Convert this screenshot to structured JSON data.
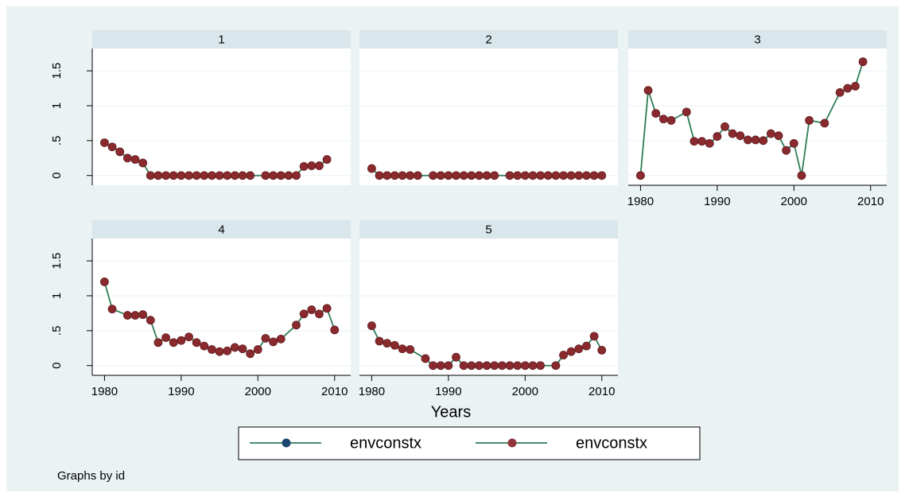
{
  "chart_data": [
    {
      "type": "line",
      "title": "1",
      "ylabels": true,
      "x": [
        1980,
        1981,
        1982,
        1983,
        1984,
        1985,
        1986,
        1987,
        1988,
        1989,
        1990,
        1991,
        1992,
        1993,
        1994,
        1995,
        1996,
        1997,
        1998,
        1999,
        2001,
        2002,
        2003,
        2004,
        2005,
        2006,
        2007,
        2008,
        2009
      ],
      "series": [
        {
          "color": "#8b2a2e",
          "line_color": "#2e7d56",
          "values": [
            0.47,
            0.41,
            0.34,
            0.25,
            0.23,
            0.18,
            0,
            0,
            0,
            0,
            0,
            0,
            0,
            0,
            0,
            0,
            0,
            0,
            0,
            0,
            0,
            0,
            0,
            0,
            0,
            0.13,
            0.14,
            0.14,
            0.23
          ]
        }
      ],
      "xlim": [
        1978.4,
        2012.1
      ],
      "ylim": [
        -0.14,
        1.82
      ],
      "yticks": [
        0,
        {
          "value": 0.5,
          "label": ".5"
        },
        1,
        {
          "value": 1.5,
          "label": "1.5"
        }
      ]
    },
    {
      "type": "line",
      "title": "2",
      "ylabels": false,
      "x": [
        1980,
        1981,
        1982,
        1983,
        1984,
        1985,
        1986,
        1988,
        1989,
        1990,
        1991,
        1992,
        1993,
        1994,
        1995,
        1996,
        1998,
        1999,
        2000,
        2001,
        2002,
        2003,
        2004,
        2005,
        2006,
        2007,
        2008,
        2009,
        2010
      ],
      "series": [
        {
          "color": "#8b2a2e",
          "line_color": "#2e7d56",
          "values": [
            0.1,
            0,
            0,
            0,
            0,
            0,
            0,
            0,
            0,
            0,
            0,
            0,
            0,
            0,
            0,
            0,
            0,
            0,
            0,
            0,
            0,
            0,
            0,
            0,
            0,
            0,
            0,
            0,
            0
          ]
        }
      ],
      "xlim": [
        1978.4,
        2012.1
      ],
      "ylim": [
        -0.14,
        1.82
      ],
      "yticks": [
        0,
        0.5,
        1,
        1.5
      ]
    },
    {
      "type": "line",
      "title": "3",
      "ylabels": false,
      "x": [
        1980,
        1981,
        1982,
        1983,
        1984,
        1986,
        1987,
        1988,
        1989,
        1990,
        1991,
        1992,
        1993,
        1994,
        1995,
        1996,
        1997,
        1998,
        1999,
        2000,
        2001,
        2002,
        2004,
        2006,
        2007,
        2008,
        2009
      ],
      "series": [
        {
          "color": "#8b2a2e",
          "line_color": "#2e7d56",
          "values": [
            0,
            1.22,
            0.89,
            0.81,
            0.79,
            0.91,
            0.49,
            0.49,
            0.46,
            0.56,
            0.7,
            0.6,
            0.57,
            0.51,
            0.51,
            0.5,
            0.6,
            0.57,
            0.36,
            0.46,
            0,
            0.79,
            0.75,
            1.19,
            1.25,
            1.28,
            1.63
          ]
        }
      ],
      "xlim": [
        1978.4,
        2012.1
      ],
      "ylim": [
        -0.14,
        1.82
      ],
      "xticks": [
        1980,
        1990,
        2000,
        2010
      ],
      "yticks": [
        0,
        0.5,
        1,
        1.5
      ]
    },
    {
      "type": "line",
      "title": "4",
      "ylabels": true,
      "x": [
        1980,
        1981,
        1983,
        1984,
        1985,
        1986,
        1987,
        1988,
        1989,
        1990,
        1991,
        1992,
        1993,
        1994,
        1995,
        1996,
        1997,
        1998,
        1999,
        2000,
        2001,
        2002,
        2003,
        2005,
        2006,
        2007,
        2008,
        2009,
        2010
      ],
      "series": [
        {
          "color": "#8b2a2e",
          "line_color": "#2e7d56",
          "values": [
            1.2,
            0.81,
            0.72,
            0.72,
            0.73,
            0.65,
            0.33,
            0.4,
            0.33,
            0.36,
            0.41,
            0.33,
            0.28,
            0.23,
            0.2,
            0.21,
            0.26,
            0.24,
            0.17,
            0.23,
            0.39,
            0.34,
            0.38,
            0.58,
            0.74,
            0.8,
            0.74,
            0.82,
            0.51
          ]
        }
      ],
      "xlim": [
        1978.4,
        2012.1
      ],
      "ylim": [
        -0.14,
        1.82
      ],
      "xticks": [
        1980,
        1990,
        2000,
        2010
      ],
      "yticks": [
        0,
        {
          "value": 0.5,
          "label": ".5"
        },
        1,
        {
          "value": 1.5,
          "label": "1.5"
        }
      ]
    },
    {
      "type": "line",
      "title": "5",
      "ylabels": false,
      "x": [
        1980,
        1981,
        1982,
        1983,
        1984,
        1985,
        1987,
        1988,
        1989,
        1990,
        1991,
        1992,
        1993,
        1994,
        1995,
        1996,
        1997,
        1998,
        1999,
        2000,
        2001,
        2002,
        2004,
        2005,
        2006,
        2007,
        2008,
        2009,
        2010
      ],
      "series": [
        {
          "color": "#8b2a2e",
          "line_color": "#2e7d56",
          "values": [
            0.57,
            0.35,
            0.32,
            0.29,
            0.24,
            0.23,
            0.1,
            0,
            0,
            0,
            0.12,
            0,
            0,
            0,
            0,
            0,
            0,
            0,
            0,
            0,
            0,
            0,
            0,
            0.15,
            0.2,
            0.24,
            0.28,
            0.42,
            0.22
          ]
        }
      ],
      "xlim": [
        1978.4,
        2012.1
      ],
      "ylim": [
        -0.14,
        1.82
      ],
      "xticks": [
        1980,
        1990,
        2000,
        2010
      ],
      "yticks": [
        0,
        0.5,
        1,
        1.5
      ]
    }
  ],
  "x_title": "Years",
  "legend": [
    {
      "name": "envconstx",
      "marker_color": "#1a476f",
      "line_color": "#2e7d56"
    },
    {
      "name": "envconstx",
      "marker_color": "#90353b",
      "line_color": "#2e7d56"
    }
  ],
  "note": "Graphs by id"
}
